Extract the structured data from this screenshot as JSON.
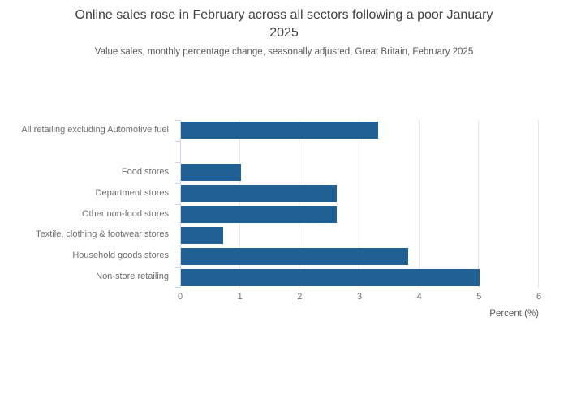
{
  "header": {
    "title_line1": "Online sales rose in February across all sectors following a poor January",
    "title_line2": "2025",
    "subtitle": "Value sales, monthly percentage change, seasonally adjusted, Great Britain, February 2025"
  },
  "colors": {
    "bar": "#206095",
    "axis": "#ccd9ec",
    "grid": "#e6e6e6"
  },
  "chart_data": {
    "type": "bar",
    "orientation": "horizontal",
    "title": "Online sales rose in February across all sectors following a poor January 2025",
    "subtitle": "Value sales, monthly percentage change, seasonally adjusted, Great Britain, February 2025",
    "categories": [
      "All retailing excluding Automotive fuel",
      "Food stores",
      "Department stores",
      "Other non-food stores",
      "Textile, clothing & footwear stores",
      "Household goods stores",
      "Non-store retailing"
    ],
    "values": [
      3.3,
      1.0,
      2.6,
      2.6,
      0.7,
      3.8,
      5.0
    ],
    "xlabel": "Percent (%)",
    "xlim": [
      0,
      6
    ],
    "xticks": [
      0,
      1,
      2,
      3,
      4,
      5,
      6
    ],
    "grid": true,
    "legend": false,
    "spacer_after_category_index": 0
  }
}
